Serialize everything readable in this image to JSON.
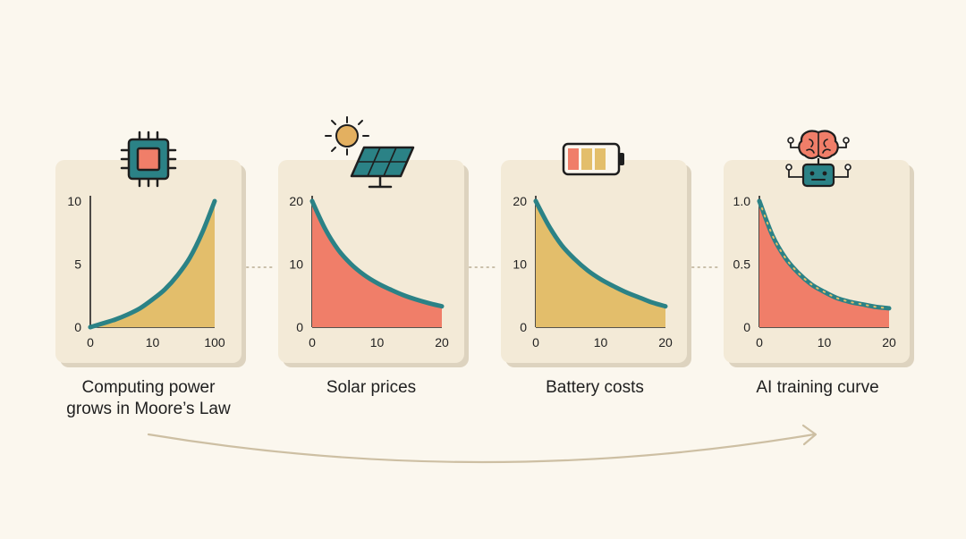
{
  "colors": {
    "background": "#fbf7ee",
    "panel": "#f3ead7",
    "panel_shadow": "#ddd3bf",
    "teal": "#2b8286",
    "coral": "#f07e69",
    "mustard": "#e3be6b",
    "arrow": "#cdbfa3"
  },
  "icons": [
    "chip-icon",
    "solar-panel-icon",
    "battery-icon",
    "ai-brain-robot-icon"
  ],
  "captions": [
    {
      "lines": [
        "Computing power",
        "grows in Moore’s Law"
      ]
    },
    {
      "lines": [
        "Solar prices"
      ]
    },
    {
      "lines": [
        "Battery costs"
      ]
    },
    {
      "lines": [
        "AI training curve"
      ]
    }
  ],
  "chart_data": [
    {
      "type": "area",
      "title": "Computing power grows in Moore’s Law",
      "xlim": [
        0,
        100
      ],
      "ylim": [
        0,
        10
      ],
      "xticks": [
        "0",
        "10",
        "100"
      ],
      "yticks": [
        "0",
        "5",
        "10"
      ],
      "fill": "mustard",
      "x": [
        0,
        10,
        20,
        30,
        40,
        50,
        60,
        70,
        80,
        90,
        100
      ],
      "y": [
        0.0,
        0.3,
        0.6,
        1.0,
        1.5,
        2.2,
        3.0,
        4.1,
        5.5,
        7.5,
        10.0
      ]
    },
    {
      "type": "area",
      "title": "Solar prices",
      "xlim": [
        0,
        20
      ],
      "ylim": [
        0,
        20
      ],
      "xticks": [
        "0",
        "10",
        "20"
      ],
      "yticks": [
        "0",
        "10",
        "20"
      ],
      "fill": "coral",
      "x": [
        0,
        2,
        4,
        6,
        8,
        10,
        12,
        14,
        16,
        18,
        20
      ],
      "y": [
        20.0,
        15.6,
        12.3,
        10.0,
        8.3,
        7.0,
        6.0,
        5.1,
        4.4,
        3.8,
        3.3
      ]
    },
    {
      "type": "area",
      "title": "Battery costs",
      "xlim": [
        0,
        20
      ],
      "ylim": [
        0,
        20
      ],
      "xticks": [
        "0",
        "10",
        "20"
      ],
      "yticks": [
        "0",
        "10",
        "20"
      ],
      "fill": "mustard",
      "x": [
        0,
        2,
        4,
        6,
        8,
        10,
        12,
        14,
        16,
        18,
        20
      ],
      "y": [
        20.0,
        16.1,
        13.0,
        10.8,
        9.0,
        7.6,
        6.5,
        5.5,
        4.7,
        3.9,
        3.3
      ]
    },
    {
      "type": "area",
      "title": "AI training curve",
      "xlim": [
        0,
        20
      ],
      "ylim": [
        0,
        1.0
      ],
      "xticks": [
        "0",
        "10",
        "20"
      ],
      "yticks": [
        "0",
        "0.5",
        "1.0"
      ],
      "fill": "coral",
      "x": [
        0,
        2,
        4,
        6,
        8,
        10,
        12,
        14,
        16,
        18,
        20
      ],
      "y": [
        1.0,
        0.73,
        0.55,
        0.43,
        0.34,
        0.28,
        0.23,
        0.2,
        0.18,
        0.16,
        0.15
      ]
    }
  ]
}
